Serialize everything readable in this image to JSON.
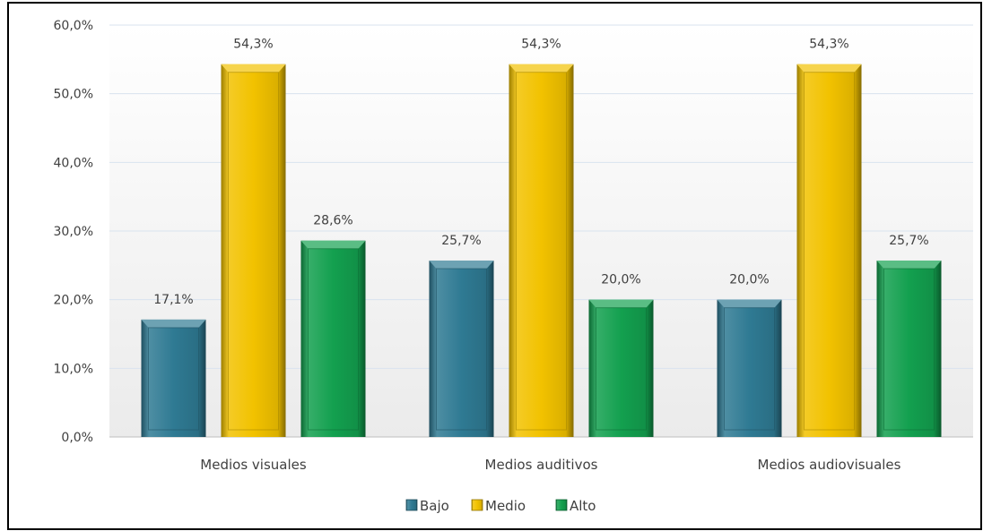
{
  "chart_data": {
    "type": "bar",
    "title": "",
    "xlabel": "",
    "ylabel": "",
    "categories": [
      "Medios visuales",
      "Medios auditivos",
      "Medios audiovisuales"
    ],
    "series": [
      {
        "name": "Bajo",
        "values": [
          17.1,
          25.7,
          20.0
        ],
        "labels": [
          "17,1%",
          "25,7%",
          "20,0%"
        ],
        "color": "#2f7a93"
      },
      {
        "name": "Medio",
        "values": [
          54.3,
          54.3,
          54.3
        ],
        "labels": [
          "54,3%",
          "54,3%",
          "54,3%"
        ],
        "color": "#f2c200"
      },
      {
        "name": "Alto",
        "values": [
          28.6,
          20.0,
          25.7
        ],
        "labels": [
          "28,6%",
          "20,0%",
          "25,7%"
        ],
        "color": "#13a04f"
      }
    ],
    "ylim": [
      0,
      60
    ],
    "yticks": [
      0,
      10,
      20,
      30,
      40,
      50,
      60
    ],
    "ytick_labels": [
      "0,0%",
      "10,0%",
      "20,0%",
      "30,0%",
      "40,0%",
      "50,0%",
      "60,0%"
    ],
    "grid": true,
    "legend_position": "bottom"
  }
}
